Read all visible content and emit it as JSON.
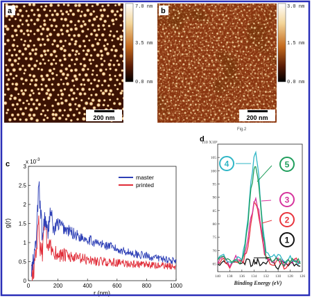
{
  "panels": {
    "a": {
      "letter": "a",
      "colorbar": {
        "max": "7.0 nm",
        "mid": "3.5 nm",
        "min": "0.0 nm"
      },
      "scalebar": "200 nm"
    },
    "b": {
      "letter": "b",
      "colorbar": {
        "max": "3.0 nm",
        "mid": "1.5 nm",
        "min": "0.0 nm"
      },
      "scalebar": "200 nm",
      "caption_mark": "Fig.2"
    },
    "c": {
      "letter": "c"
    },
    "d": {
      "letter": "d"
    }
  },
  "colors": {
    "frame": "#2a2fb8",
    "afm_dark": "#2a0c02",
    "afm_mid": "#a4420e",
    "afm_light": "#f2ddb0",
    "master": "#2d3fb6",
    "printed": "#e02a36",
    "curve1": "#111111",
    "curve2": "#e8323c",
    "curve3": "#d6339c",
    "curve4": "#2fb6c6",
    "curve5": "#1f9e5c"
  },
  "chart_data": [
    {
      "type": "line",
      "panel": "c",
      "xlabel": "r (nm)",
      "ylabel": "g(r)",
      "y_multiplier": "x 10",
      "y_exponent": "-3",
      "xlim": [
        0,
        1000
      ],
      "ylim": [
        0,
        3
      ],
      "xticks": [
        "0",
        "200",
        "400",
        "600",
        "800",
        "1000"
      ],
      "yticks": [
        "0",
        "0.5",
        "1",
        "1.5",
        "2",
        "2.5",
        "3"
      ],
      "legend_position": "top-right",
      "x": [
        20,
        40,
        55,
        70,
        80,
        95,
        110,
        130,
        150,
        170,
        200,
        250,
        300,
        350,
        400,
        450,
        500,
        550,
        600,
        650,
        700,
        750,
        800,
        850,
        900,
        950,
        1000
      ],
      "series": [
        {
          "name": "master",
          "values": [
            0.2,
            0.6,
            1.2,
            2.55,
            1.95,
            1.1,
            1.7,
            1.2,
            1.9,
            1.3,
            1.5,
            1.35,
            1.25,
            1.15,
            1.1,
            1.0,
            0.95,
            0.9,
            0.82,
            0.78,
            0.72,
            0.68,
            0.65,
            0.6,
            0.58,
            0.55,
            0.5
          ]
        },
        {
          "name": "printed",
          "values": [
            0.15,
            0.4,
            0.9,
            1.6,
            0.9,
            0.7,
            1.65,
            0.8,
            0.9,
            0.75,
            0.7,
            0.65,
            0.6,
            0.58,
            0.55,
            0.52,
            0.5,
            0.48,
            0.47,
            0.45,
            0.44,
            0.42,
            0.41,
            0.4,
            0.39,
            0.38,
            0.38
          ]
        }
      ]
    },
    {
      "type": "line",
      "panel": "d",
      "xlabel": "Binding Energy (eV)",
      "y_top_label": "110 X10³",
      "xticks": [
        "140",
        "138",
        "136",
        "134",
        "132",
        "130",
        "128",
        "126"
      ],
      "yticks": [
        "105",
        "100",
        "95",
        "90",
        "85",
        "80",
        "75",
        "70",
        "65"
      ],
      "xlim": [
        140,
        126
      ],
      "ylim": [
        62,
        110
      ],
      "x": [
        140,
        139,
        138,
        137,
        136,
        135.5,
        135,
        134.5,
        134,
        133.7,
        133.4,
        133,
        132.5,
        132,
        131,
        130,
        129,
        128,
        127,
        126
      ],
      "series": [
        {
          "name": "1",
          "values": [
            65,
            66,
            64,
            65,
            66,
            65,
            66,
            65,
            66,
            65,
            66,
            65,
            66,
            65,
            66,
            64,
            66,
            65,
            64,
            65
          ]
        },
        {
          "name": "2",
          "values": [
            65,
            67,
            64,
            66,
            65,
            68,
            72,
            80,
            87,
            88,
            86,
            80,
            72,
            67,
            65,
            66,
            64,
            65,
            66,
            64
          ]
        },
        {
          "name": "3",
          "values": [
            66,
            68,
            65,
            67,
            66,
            69,
            75,
            82,
            88,
            89,
            87,
            82,
            73,
            68,
            66,
            67,
            65,
            66,
            67,
            65
          ]
        },
        {
          "name": "4",
          "values": [
            67,
            68,
            66,
            67,
            67,
            72,
            82,
            95,
            104,
            106,
            103,
            92,
            78,
            69,
            67,
            68,
            66,
            67,
            66,
            65
          ]
        },
        {
          "name": "5",
          "values": [
            66,
            67,
            66,
            66,
            66,
            70,
            80,
            93,
            100,
            101,
            99,
            90,
            76,
            68,
            66,
            67,
            65,
            66,
            66,
            65
          ]
        }
      ],
      "labels": [
        "1",
        "2",
        "3",
        "4",
        "5"
      ]
    }
  ]
}
